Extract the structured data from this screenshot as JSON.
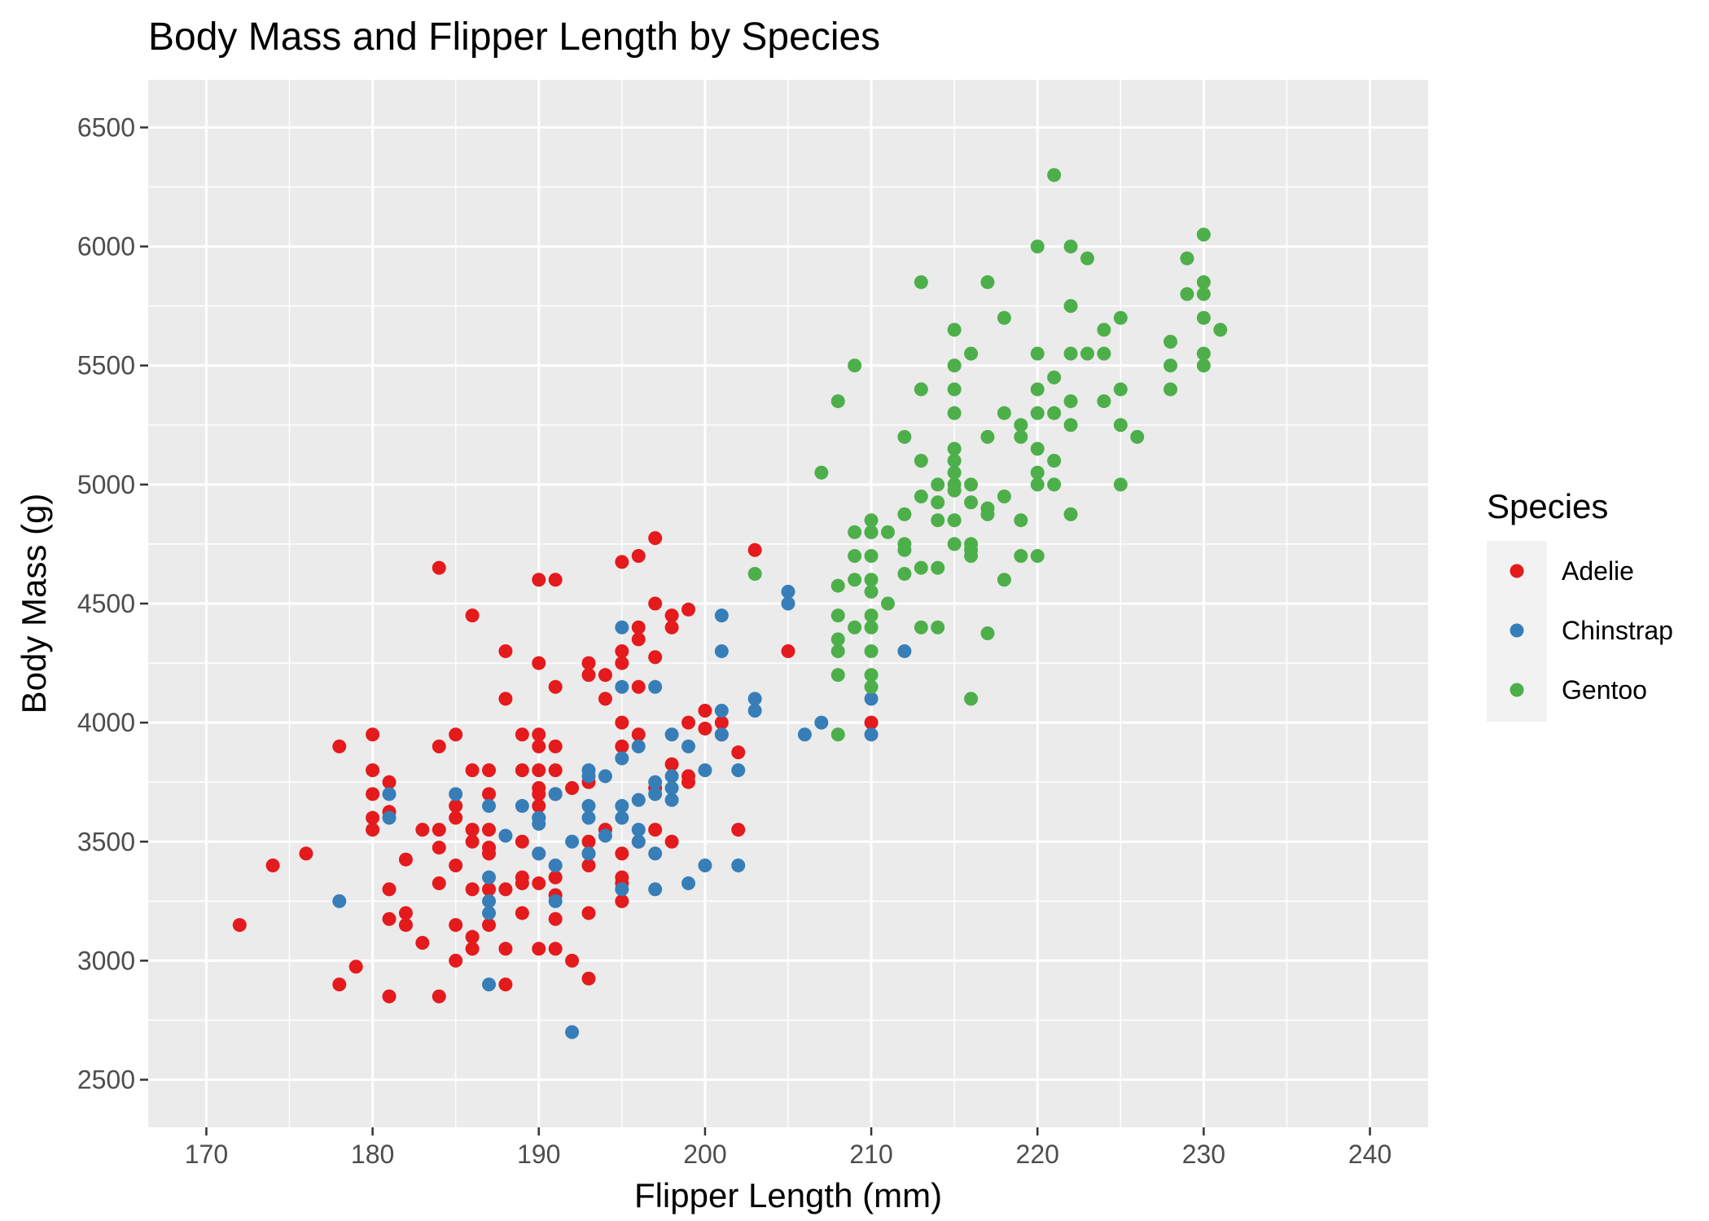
{
  "chart_data": {
    "type": "scatter",
    "title": "Body Mass and Flipper Length by Species",
    "xlabel": "Flipper Length (mm)",
    "ylabel": "Body Mass (g)",
    "xlim": [
      166.5,
      243.5
    ],
    "ylim": [
      2300,
      6700
    ],
    "xticks": [
      170,
      180,
      190,
      200,
      210,
      220,
      230,
      240
    ],
    "yticks": [
      2500,
      3000,
      3500,
      4000,
      4500,
      5000,
      5500,
      6000,
      6500
    ],
    "grid": true,
    "legend": {
      "title": "Species",
      "position": "right"
    },
    "series": [
      {
        "name": "Adelie",
        "color": "#e41a1c",
        "points": [
          [
            172,
            3150
          ],
          [
            174,
            3400
          ],
          [
            176,
            3450
          ],
          [
            178,
            3900
          ],
          [
            178,
            2900
          ],
          [
            179,
            2975
          ],
          [
            180,
            3950
          ],
          [
            180,
            3800
          ],
          [
            180,
            3700
          ],
          [
            180,
            3600
          ],
          [
            180,
            3550
          ],
          [
            181,
            3750
          ],
          [
            181,
            3625
          ],
          [
            181,
            3300
          ],
          [
            181,
            3175
          ],
          [
            181,
            2850
          ],
          [
            182,
            3425
          ],
          [
            182,
            3200
          ],
          [
            182,
            3150
          ],
          [
            183,
            3550
          ],
          [
            183,
            3075
          ],
          [
            184,
            4650
          ],
          [
            184,
            3900
          ],
          [
            184,
            3550
          ],
          [
            184,
            3475
          ],
          [
            184,
            3325
          ],
          [
            184,
            2850
          ],
          [
            185,
            3950
          ],
          [
            185,
            3650
          ],
          [
            185,
            3600
          ],
          [
            185,
            3400
          ],
          [
            185,
            3150
          ],
          [
            185,
            3000
          ],
          [
            186,
            4450
          ],
          [
            186,
            3800
          ],
          [
            186,
            3550
          ],
          [
            186,
            3500
          ],
          [
            186,
            3300
          ],
          [
            186,
            3100
          ],
          [
            186,
            3050
          ],
          [
            187,
            3800
          ],
          [
            187,
            3700
          ],
          [
            187,
            3550
          ],
          [
            187,
            3475
          ],
          [
            187,
            3450
          ],
          [
            187,
            3300
          ],
          [
            187,
            3150
          ],
          [
            188,
            4300
          ],
          [
            188,
            4100
          ],
          [
            188,
            3300
          ],
          [
            188,
            3050
          ],
          [
            188,
            2900
          ],
          [
            189,
            3950
          ],
          [
            189,
            3800
          ],
          [
            189,
            3500
          ],
          [
            189,
            3350
          ],
          [
            189,
            3325
          ],
          [
            189,
            3200
          ],
          [
            190,
            4600
          ],
          [
            190,
            4250
          ],
          [
            190,
            3950
          ],
          [
            190,
            3900
          ],
          [
            190,
            3800
          ],
          [
            190,
            3725
          ],
          [
            190,
            3700
          ],
          [
            190,
            3650
          ],
          [
            190,
            3600
          ],
          [
            190,
            3450
          ],
          [
            190,
            3325
          ],
          [
            190,
            3050
          ],
          [
            191,
            4600
          ],
          [
            191,
            4150
          ],
          [
            191,
            3900
          ],
          [
            191,
            3800
          ],
          [
            191,
            3700
          ],
          [
            191,
            3350
          ],
          [
            191,
            3275
          ],
          [
            191,
            3175
          ],
          [
            191,
            3050
          ],
          [
            192,
            3725
          ],
          [
            192,
            3000
          ],
          [
            193,
            4250
          ],
          [
            193,
            4200
          ],
          [
            193,
            3750
          ],
          [
            193,
            3500
          ],
          [
            193,
            3450
          ],
          [
            193,
            3400
          ],
          [
            193,
            3200
          ],
          [
            193,
            2925
          ],
          [
            194,
            4200
          ],
          [
            194,
            3550
          ],
          [
            194,
            4100
          ],
          [
            195,
            4675
          ],
          [
            195,
            4300
          ],
          [
            195,
            4250
          ],
          [
            195,
            4000
          ],
          [
            195,
            3900
          ],
          [
            195,
            3450
          ],
          [
            195,
            3350
          ],
          [
            195,
            3325
          ],
          [
            195,
            3250
          ],
          [
            196,
            4700
          ],
          [
            196,
            4400
          ],
          [
            196,
            4350
          ],
          [
            196,
            4150
          ],
          [
            196,
            3950
          ],
          [
            196,
            3500
          ],
          [
            197,
            4775
          ],
          [
            197,
            4500
          ],
          [
            197,
            4275
          ],
          [
            197,
            3725
          ],
          [
            197,
            3550
          ],
          [
            198,
            4450
          ],
          [
            198,
            4400
          ],
          [
            198,
            3825
          ],
          [
            198,
            3500
          ],
          [
            199,
            4475
          ],
          [
            199,
            4000
          ],
          [
            199,
            3775
          ],
          [
            199,
            3750
          ],
          [
            200,
            4050
          ],
          [
            200,
            3975
          ],
          [
            201,
            4000
          ],
          [
            201,
            3950
          ],
          [
            202,
            3875
          ],
          [
            202,
            3550
          ],
          [
            203,
            4725
          ],
          [
            205,
            4300
          ],
          [
            210,
            4000
          ]
        ]
      },
      {
        "name": "Chinstrap",
        "color": "#377eb8",
        "points": [
          [
            178,
            3250
          ],
          [
            181,
            3700
          ],
          [
            181,
            3600
          ],
          [
            185,
            3700
          ],
          [
            187,
            3650
          ],
          [
            187,
            3350
          ],
          [
            187,
            3250
          ],
          [
            187,
            3200
          ],
          [
            187,
            2900
          ],
          [
            188,
            3525
          ],
          [
            189,
            3650
          ],
          [
            190,
            3600
          ],
          [
            190,
            3575
          ],
          [
            190,
            3450
          ],
          [
            191,
            3700
          ],
          [
            191,
            3400
          ],
          [
            191,
            3250
          ],
          [
            192,
            3500
          ],
          [
            192,
            2700
          ],
          [
            193,
            3800
          ],
          [
            193,
            3775
          ],
          [
            193,
            3650
          ],
          [
            193,
            3600
          ],
          [
            193,
            3450
          ],
          [
            194,
            3775
          ],
          [
            194,
            3525
          ],
          [
            195,
            4400
          ],
          [
            195,
            4150
          ],
          [
            195,
            3850
          ],
          [
            195,
            3650
          ],
          [
            195,
            3600
          ],
          [
            195,
            3300
          ],
          [
            196,
            3900
          ],
          [
            196,
            3675
          ],
          [
            196,
            3550
          ],
          [
            196,
            3500
          ],
          [
            197,
            4150
          ],
          [
            197,
            3750
          ],
          [
            197,
            3700
          ],
          [
            197,
            3450
          ],
          [
            197,
            3300
          ],
          [
            198,
            3950
          ],
          [
            198,
            3775
          ],
          [
            198,
            3725
          ],
          [
            198,
            3675
          ],
          [
            199,
            3900
          ],
          [
            199,
            3325
          ],
          [
            200,
            3800
          ],
          [
            200,
            3400
          ],
          [
            201,
            4450
          ],
          [
            201,
            4300
          ],
          [
            201,
            4050
          ],
          [
            201,
            3950
          ],
          [
            202,
            3800
          ],
          [
            202,
            3400
          ],
          [
            203,
            4100
          ],
          [
            203,
            4050
          ],
          [
            205,
            4550
          ],
          [
            205,
            4500
          ],
          [
            206,
            3950
          ],
          [
            207,
            4000
          ],
          [
            210,
            4800
          ],
          [
            210,
            4100
          ],
          [
            210,
            3950
          ],
          [
            212,
            4300
          ]
        ]
      },
      {
        "name": "Gentoo",
        "color": "#4daf4a",
        "points": [
          [
            203,
            4625
          ],
          [
            207,
            5050
          ],
          [
            208,
            5350
          ],
          [
            208,
            4575
          ],
          [
            208,
            4450
          ],
          [
            208,
            4350
          ],
          [
            208,
            4300
          ],
          [
            208,
            4200
          ],
          [
            208,
            3950
          ],
          [
            209,
            5500
          ],
          [
            209,
            4800
          ],
          [
            209,
            4700
          ],
          [
            209,
            4600
          ],
          [
            209,
            4400
          ],
          [
            210,
            4850
          ],
          [
            210,
            4800
          ],
          [
            210,
            4700
          ],
          [
            210,
            4600
          ],
          [
            210,
            4550
          ],
          [
            210,
            4450
          ],
          [
            210,
            4400
          ],
          [
            210,
            4300
          ],
          [
            210,
            4200
          ],
          [
            210,
            4150
          ],
          [
            211,
            4800
          ],
          [
            211,
            4500
          ],
          [
            212,
            5200
          ],
          [
            212,
            4875
          ],
          [
            212,
            4750
          ],
          [
            212,
            4725
          ],
          [
            212,
            4625
          ],
          [
            213,
            5850
          ],
          [
            213,
            5400
          ],
          [
            213,
            5100
          ],
          [
            213,
            4950
          ],
          [
            213,
            4650
          ],
          [
            213,
            4400
          ],
          [
            214,
            5000
          ],
          [
            214,
            4925
          ],
          [
            214,
            4850
          ],
          [
            214,
            4650
          ],
          [
            214,
            4400
          ],
          [
            215,
            5650
          ],
          [
            215,
            5500
          ],
          [
            215,
            5400
          ],
          [
            215,
            5300
          ],
          [
            215,
            5150
          ],
          [
            215,
            5100
          ],
          [
            215,
            5050
          ],
          [
            215,
            5000
          ],
          [
            215,
            4975
          ],
          [
            215,
            4850
          ],
          [
            215,
            4750
          ],
          [
            216,
            5550
          ],
          [
            216,
            5000
          ],
          [
            216,
            4925
          ],
          [
            216,
            4750
          ],
          [
            216,
            4725
          ],
          [
            216,
            4700
          ],
          [
            216,
            4100
          ],
          [
            217,
            5850
          ],
          [
            217,
            5200
          ],
          [
            217,
            4900
          ],
          [
            217,
            4875
          ],
          [
            217,
            4375
          ],
          [
            218,
            5700
          ],
          [
            218,
            5300
          ],
          [
            218,
            4950
          ],
          [
            218,
            4600
          ],
          [
            219,
            5250
          ],
          [
            219,
            5200
          ],
          [
            219,
            4850
          ],
          [
            219,
            4700
          ],
          [
            220,
            6000
          ],
          [
            220,
            5550
          ],
          [
            220,
            5400
          ],
          [
            220,
            5300
          ],
          [
            220,
            5150
          ],
          [
            220,
            5050
          ],
          [
            220,
            5000
          ],
          [
            220,
            4700
          ],
          [
            221,
            6300
          ],
          [
            221,
            5450
          ],
          [
            221,
            5300
          ],
          [
            221,
            5100
          ],
          [
            221,
            5000
          ],
          [
            222,
            6000
          ],
          [
            222,
            5750
          ],
          [
            222,
            5550
          ],
          [
            222,
            5350
          ],
          [
            222,
            5250
          ],
          [
            222,
            4875
          ],
          [
            223,
            5950
          ],
          [
            223,
            5550
          ],
          [
            224,
            5650
          ],
          [
            224,
            5550
          ],
          [
            224,
            5350
          ],
          [
            225,
            5700
          ],
          [
            225,
            5400
          ],
          [
            225,
            5250
          ],
          [
            225,
            5000
          ],
          [
            226,
            5200
          ],
          [
            228,
            5600
          ],
          [
            228,
            5500
          ],
          [
            228,
            5400
          ],
          [
            229,
            5950
          ],
          [
            229,
            5800
          ],
          [
            230,
            6050
          ],
          [
            230,
            5850
          ],
          [
            230,
            5800
          ],
          [
            230,
            5700
          ],
          [
            230,
            5550
          ],
          [
            230,
            5500
          ],
          [
            231,
            5650
          ]
        ]
      }
    ]
  }
}
